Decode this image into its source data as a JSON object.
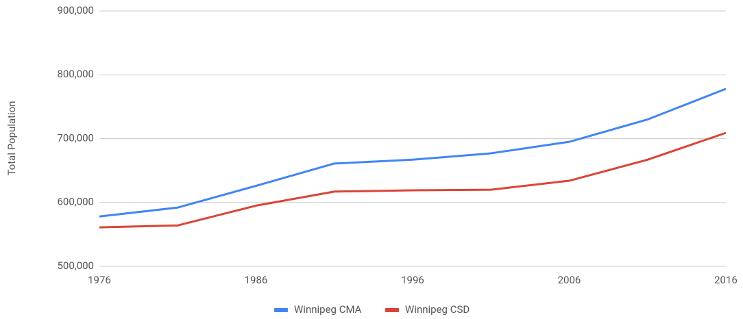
{
  "chart_data": {
    "type": "line",
    "y_label": "Total Population",
    "x": [
      1976,
      1981,
      1986,
      1991,
      1996,
      2001,
      2006,
      2011,
      2016
    ],
    "series": [
      {
        "name": "Winnipeg CMA",
        "color": "#4285f4",
        "values": [
          578000,
          592000,
          626000,
          661000,
          667000,
          677000,
          695000,
          730000,
          778000
        ]
      },
      {
        "name": "Winnipeg CSD",
        "color": "#db4437",
        "values": [
          561000,
          564000,
          595000,
          617000,
          619000,
          620000,
          634000,
          667000,
          709000
        ]
      }
    ],
    "xlim": [
      1976,
      2016
    ],
    "xticks": [
      1976,
      1986,
      1996,
      2006,
      2016
    ],
    "ylim": [
      500000,
      900000
    ],
    "yticks": [
      {
        "value": 500000,
        "label": "500,000"
      },
      {
        "value": 600000,
        "label": "600,000"
      },
      {
        "value": 700000,
        "label": "700,000"
      },
      {
        "value": 800000,
        "label": "800,000"
      },
      {
        "value": 900000,
        "label": "900,000"
      }
    ],
    "grid": true,
    "legend": "bottom"
  }
}
